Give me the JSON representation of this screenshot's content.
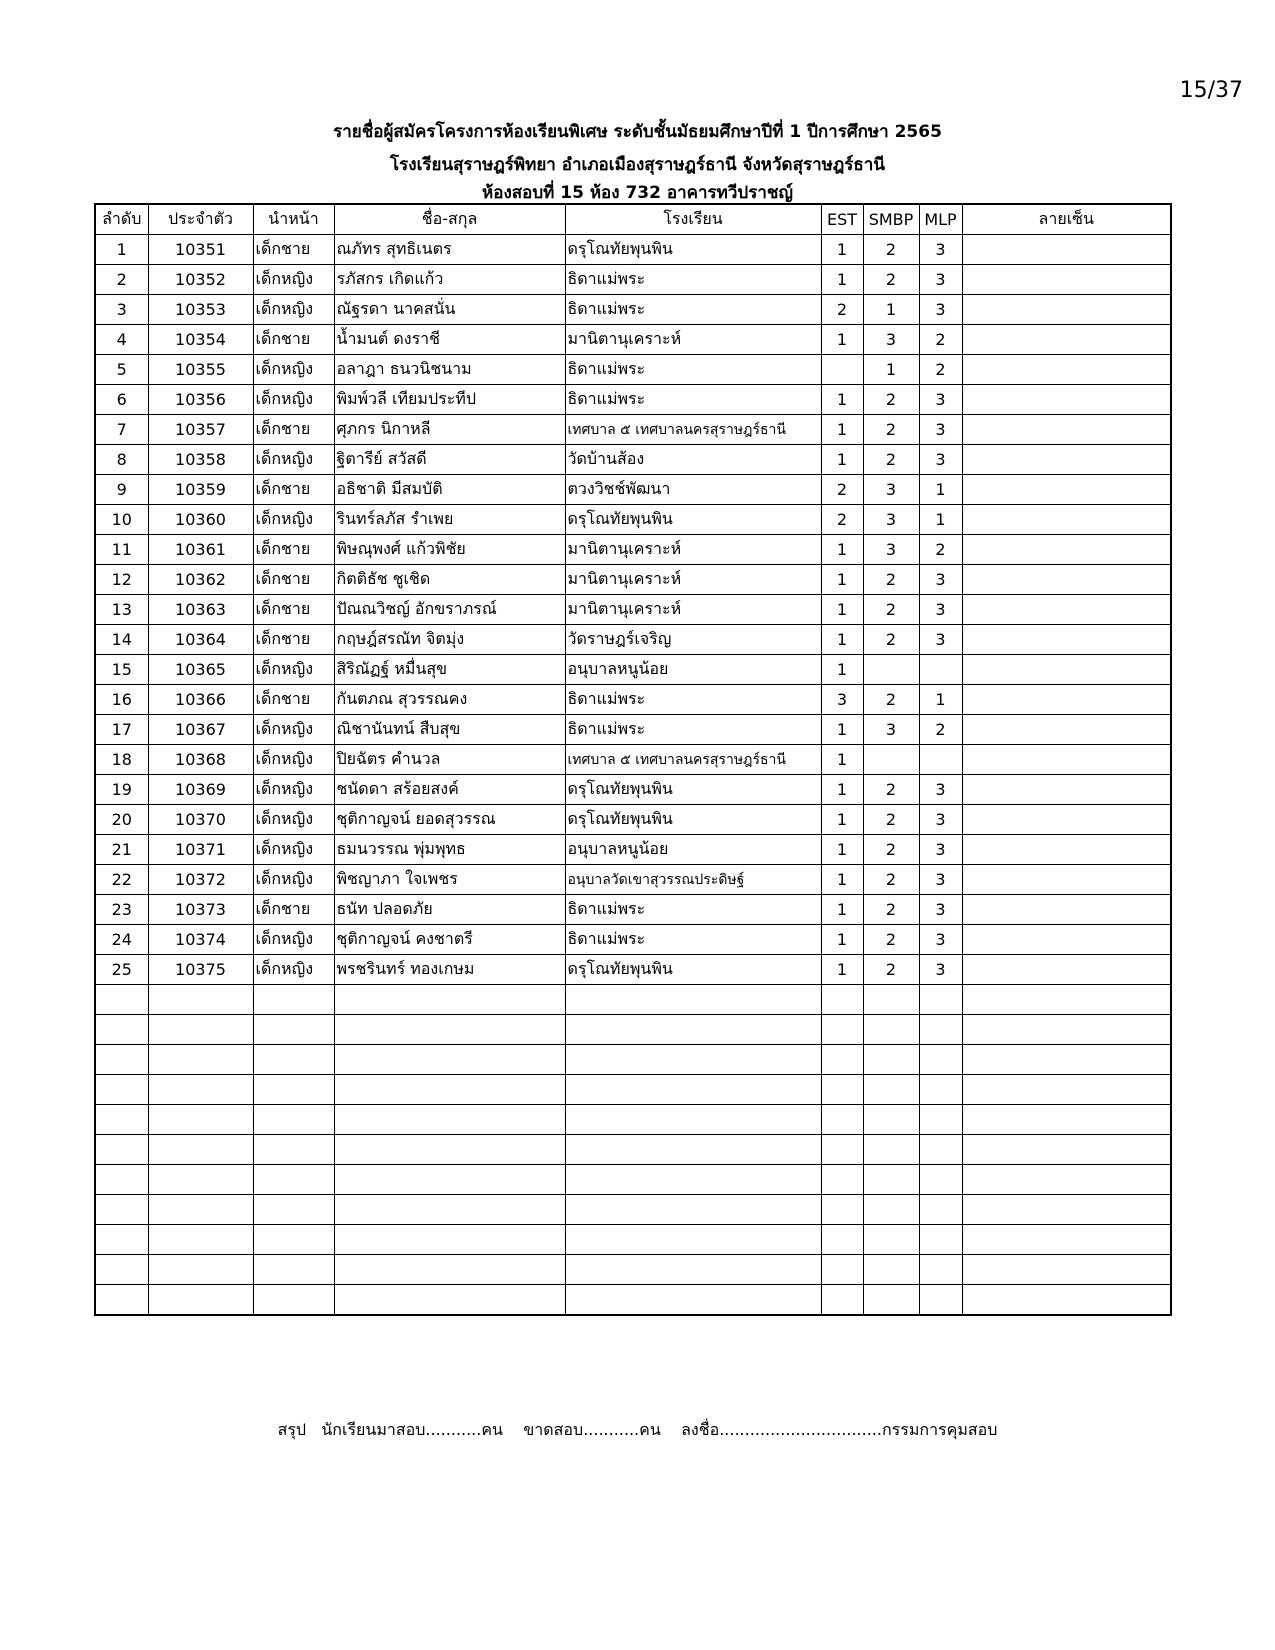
{
  "page_number": "15/37",
  "titles": [
    "รายชื่อผู้สมัครโครงการห้องเรียนพิเศษ ระดับชั้นมัธยมศึกษาปีที่ 1 ปีการศึกษา 2565",
    "โรงเรียนสุราษฎร์พิทยา อำเภอเมืองสุราษฎร์ธานี จังหวัดสุราษฎร์ธานี",
    "ห้องสอบที่ 15 ห้อง 732 อาคารทวีปราชญ์"
  ],
  "table": {
    "headers": [
      "ลำดับ",
      "ประจำตัว",
      "นำหน้า",
      "ชื่อ-สกุล",
      "โรงเรียน",
      "EST",
      "SMBP",
      "MLP",
      "ลายเซ็น"
    ],
    "rows": [
      [
        "1",
        "10351",
        "เด็กชาย",
        "ณภัทร สุทธิเนตร",
        "ดรุโณทัยพุนพิน",
        "1",
        "2",
        "3",
        ""
      ],
      [
        "2",
        "10352",
        "เด็กหญิง",
        "รภัสกร เกิดแก้ว",
        "ธิดาแม่พระ",
        "1",
        "2",
        "3",
        ""
      ],
      [
        "3",
        "10353",
        "เด็กหญิง",
        "ณัฐรดา นาคสนั่น",
        "ธิดาแม่พระ",
        "2",
        "1",
        "3",
        ""
      ],
      [
        "4",
        "10354",
        "เด็กชาย",
        "น้ำมนต์ ดงราชี",
        "มานิตานุเคราะห์",
        "1",
        "3",
        "2",
        ""
      ],
      [
        "5",
        "10355",
        "เด็กหญิง",
        "อลาฎา ธนวนิชนาม",
        "ธิดาแม่พระ",
        "",
        "1",
        "2",
        ""
      ],
      [
        "6",
        "10356",
        "เด็กหญิง",
        "พิมพ์วลี เทียมประทีป",
        "ธิดาแม่พระ",
        "1",
        "2",
        "3",
        ""
      ],
      [
        "7",
        "10357",
        "เด็กชาย",
        "ศุภกร นิกาหลี",
        "เทศบาล ๕ เทศบาลนครสุราษฎร์ธานี",
        "1",
        "2",
        "3",
        ""
      ],
      [
        "8",
        "10358",
        "เด็กหญิง",
        "ฐิตารีย์ สวัสดี",
        "วัดบ้านส้อง",
        "1",
        "2",
        "3",
        ""
      ],
      [
        "9",
        "10359",
        "เด็กชาย",
        "อธิชาติ มีสมบัติ",
        "ตวงวิชช์พัฒนา",
        "2",
        "3",
        "1",
        ""
      ],
      [
        "10",
        "10360",
        "เด็กหญิง",
        "รินทร์ลภัส รำเพย",
        "ดรุโณทัยพุนพิน",
        "2",
        "3",
        "1",
        ""
      ],
      [
        "11",
        "10361",
        "เด็กชาย",
        "พิษณุพงศ์ แก้วพิชัย",
        "มานิตานุเคราะห์",
        "1",
        "3",
        "2",
        ""
      ],
      [
        "12",
        "10362",
        "เด็กชาย",
        "กิตติธัช ชูเชิด",
        "มานิตานุเคราะห์",
        "1",
        "2",
        "3",
        ""
      ],
      [
        "13",
        "10363",
        "เด็กชาย",
        "ปัณณวิชญ์ อักขราภรณ์",
        "มานิตานุเคราะห์",
        "1",
        "2",
        "3",
        ""
      ],
      [
        "14",
        "10364",
        "เด็กชาย",
        "กฤษฎ์สรณัท จิตมุ่ง",
        "วัดราษฎร์เจริญ",
        "1",
        "2",
        "3",
        ""
      ],
      [
        "15",
        "10365",
        "เด็กหญิง",
        "สิริณัฏฐ์ หมื่นสุข",
        "อนุบาลหนูน้อย",
        "1",
        "",
        "",
        ""
      ],
      [
        "16",
        "10366",
        "เด็กชาย",
        "กันตภณ สุวรรณคง",
        "ธิดาแม่พระ",
        "3",
        "2",
        "1",
        ""
      ],
      [
        "17",
        "10367",
        "เด็กหญิง",
        "ณิชานันทน์ สืบสุข",
        "ธิดาแม่พระ",
        "1",
        "3",
        "2",
        ""
      ],
      [
        "18",
        "10368",
        "เด็กหญิง",
        "ปิยฉัตร คำนวล",
        "เทศบาล ๕ เทศบาลนครสุราษฎร์ธานี",
        "1",
        "",
        "",
        ""
      ],
      [
        "19",
        "10369",
        "เด็กหญิง",
        "ชนัดดา สร้อยสงค์",
        "ดรุโณทัยพุนพิน",
        "1",
        "2",
        "3",
        ""
      ],
      [
        "20",
        "10370",
        "เด็กหญิง",
        "ชุติกาญจน์ ยอดสุวรรณ",
        "ดรุโณทัยพุนพิน",
        "1",
        "2",
        "3",
        ""
      ],
      [
        "21",
        "10371",
        "เด็กหญิง",
        "ธมนวรรณ พุ่มพุทธ",
        "อนุบาลหนูน้อย",
        "1",
        "2",
        "3",
        ""
      ],
      [
        "22",
        "10372",
        "เด็กหญิง",
        "พิชญาภา ใจเพชร",
        "อนุบาลวัดเขาสุวรรณประดิษฐ์",
        "1",
        "2",
        "3",
        ""
      ],
      [
        "23",
        "10373",
        "เด็กชาย",
        "ธนัท ปลอดภัย",
        "ธิดาแม่พระ",
        "1",
        "2",
        "3",
        ""
      ],
      [
        "24",
        "10374",
        "เด็กหญิง",
        "ชุติกาญจน์ คงชาตรี",
        "ธิดาแม่พระ",
        "1",
        "2",
        "3",
        ""
      ],
      [
        "25",
        "10375",
        "เด็กหญิง",
        "พรชรินทร์ ทองเกษม",
        "ดรุโณทัยพุนพิน",
        "1",
        "2",
        "3",
        ""
      ]
    ]
  },
  "footer": {
    "summary": "สรุป",
    "present": "นักเรียนมาสอบ...........คน",
    "absent": "ขาดสอบ...........คน",
    "signature": "ลงชื่อ................................กรรมการคุมสอบ"
  }
}
